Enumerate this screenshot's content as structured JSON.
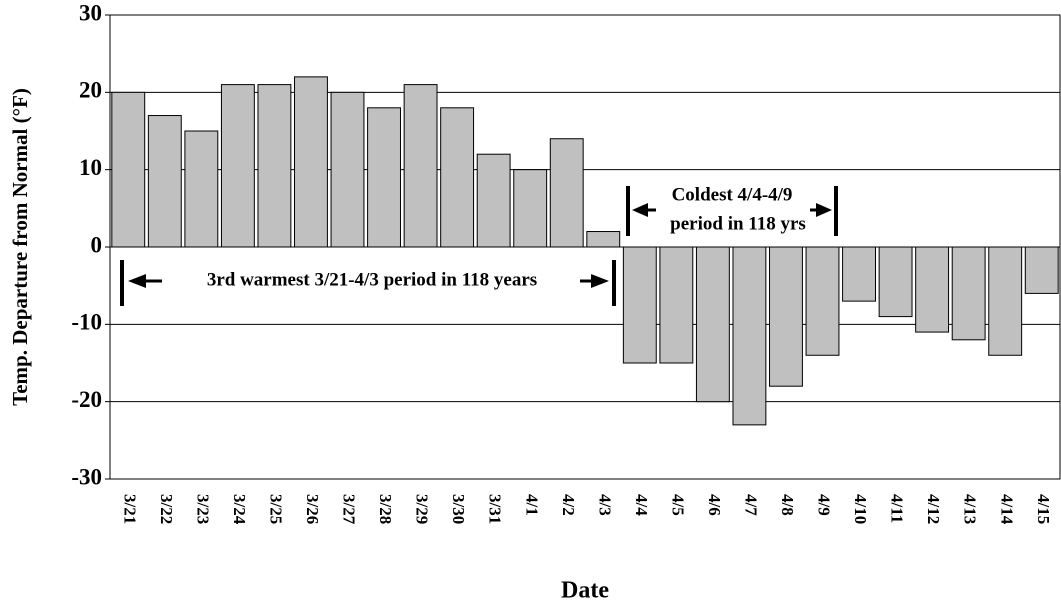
{
  "chart_data": {
    "type": "bar",
    "x_label": "Date",
    "y_label": "Temp. Departure from Normal (°F)",
    "categories": [
      "3/21",
      "3/22",
      "3/23",
      "3/24",
      "3/25",
      "3/26",
      "3/27",
      "3/28",
      "3/29",
      "3/30",
      "3/31",
      "4/1",
      "4/2",
      "4/3",
      "4/4",
      "4/5",
      "4/6",
      "4/7",
      "4/8",
      "4/9",
      "4/10",
      "4/11",
      "4/12",
      "4/13",
      "4/14",
      "4/15"
    ],
    "values": [
      20,
      17,
      15,
      21,
      21,
      22,
      20,
      18,
      21,
      18,
      12,
      10,
      14,
      2,
      -15,
      -15,
      -20,
      -23,
      -18,
      -14,
      -7,
      -9,
      -11,
      -12,
      -14,
      -6
    ],
    "color": "#c0c0c0",
    "ylim": [
      -30,
      30
    ],
    "yticks": [
      -30,
      -20,
      -10,
      0,
      10,
      20,
      30
    ],
    "grid": true,
    "annotations": [
      "3rd warmest 3/21-4/3 period in 118 years",
      "Coldest 4/4-4/9",
      "period in 118 yrs"
    ]
  }
}
